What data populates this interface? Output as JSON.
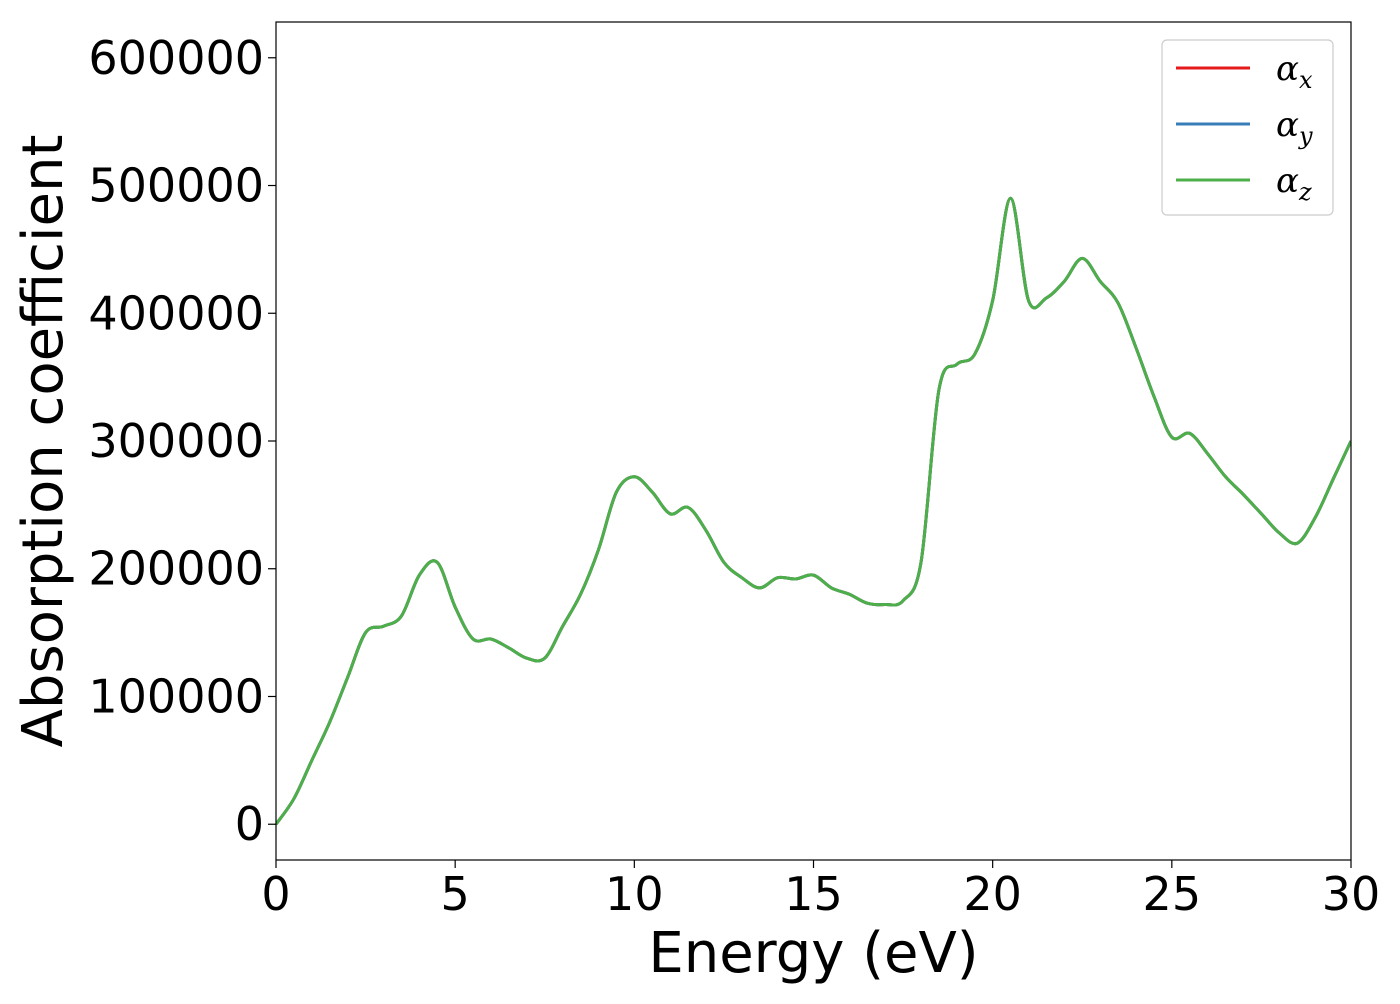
{
  "chart_data": {
    "type": "line",
    "title": "",
    "xlabel": "Energy (eV)",
    "ylabel": "Absorption coefficient",
    "xlim": [
      0,
      30
    ],
    "ylim": [
      -28000,
      628000
    ],
    "x_ticks": [
      0,
      5,
      10,
      15,
      20,
      25,
      30
    ],
    "x_tick_labels": [
      "0",
      "5",
      "10",
      "15",
      "20",
      "25",
      "30"
    ],
    "y_ticks": [
      0,
      100000,
      200000,
      300000,
      400000,
      500000,
      600000
    ],
    "y_tick_labels": [
      "0",
      "100000",
      "200000",
      "300000",
      "400000",
      "500000",
      "600000"
    ],
    "grid": false,
    "legend_position": "top-right",
    "x": [
      0,
      0.5,
      1,
      1.5,
      2,
      2.5,
      3,
      3.5,
      4,
      4.5,
      5,
      5.5,
      6,
      6.5,
      7,
      7.5,
      8,
      8.5,
      9,
      9.5,
      10,
      10.5,
      11,
      11.5,
      12,
      12.5,
      13,
      13.5,
      14,
      14.5,
      15,
      15.5,
      16,
      16.5,
      17,
      17.5,
      18,
      18.5,
      19,
      19.5,
      20,
      20.5,
      21,
      21.5,
      22,
      22.5,
      23,
      23.5,
      24,
      24.5,
      25,
      25.5,
      26,
      26.5,
      27,
      27.5,
      28,
      28.5,
      29,
      29.5,
      30
    ],
    "series": [
      {
        "name": "α_x",
        "base": "α",
        "sub": "x",
        "color": "#e41a1c",
        "values": [
          0,
          20000,
          50000,
          80000,
          115000,
          150000,
          155000,
          163000,
          195000,
          205000,
          170000,
          145000,
          145000,
          138000,
          130000,
          130000,
          155000,
          180000,
          215000,
          260000,
          272000,
          260000,
          243000,
          248000,
          230000,
          205000,
          193000,
          185000,
          193000,
          192000,
          195000,
          185000,
          180000,
          173000,
          172000,
          175000,
          205000,
          340000,
          360000,
          368000,
          410000,
          490000,
          410000,
          412000,
          425000,
          443000,
          425000,
          408000,
          373000,
          335000,
          303000,
          306000,
          290000,
          272000,
          258000,
          243000,
          228000,
          220000,
          240000,
          270000,
          300000
        ]
      },
      {
        "name": "α_y",
        "base": "α",
        "sub": "y",
        "color": "#377eb8",
        "values": [
          0,
          20000,
          50000,
          80000,
          115000,
          150000,
          155000,
          163000,
          195000,
          205000,
          170000,
          145000,
          145000,
          138000,
          130000,
          130000,
          155000,
          180000,
          215000,
          260000,
          272000,
          260000,
          243000,
          248000,
          230000,
          205000,
          193000,
          185000,
          193000,
          192000,
          195000,
          185000,
          180000,
          173000,
          172000,
          175000,
          205000,
          340000,
          360000,
          368000,
          410000,
          490000,
          410000,
          412000,
          425000,
          443000,
          425000,
          408000,
          373000,
          335000,
          303000,
          306000,
          290000,
          272000,
          258000,
          243000,
          228000,
          220000,
          240000,
          270000,
          300000
        ]
      },
      {
        "name": "α_z",
        "base": "α",
        "sub": "z",
        "color": "#4daf4a",
        "values": [
          0,
          20000,
          50000,
          80000,
          115000,
          150000,
          155000,
          163000,
          195000,
          205000,
          170000,
          145000,
          145000,
          138000,
          130000,
          130000,
          155000,
          180000,
          215000,
          260000,
          272000,
          260000,
          243000,
          248000,
          230000,
          205000,
          193000,
          185000,
          193000,
          192000,
          195000,
          185000,
          180000,
          173000,
          172000,
          175000,
          205000,
          340000,
          360000,
          368000,
          410000,
          490000,
          410000,
          412000,
          425000,
          443000,
          425000,
          408000,
          373000,
          335000,
          303000,
          306000,
          290000,
          272000,
          258000,
          243000,
          228000,
          220000,
          240000,
          270000,
          300000
        ]
      }
    ]
  }
}
